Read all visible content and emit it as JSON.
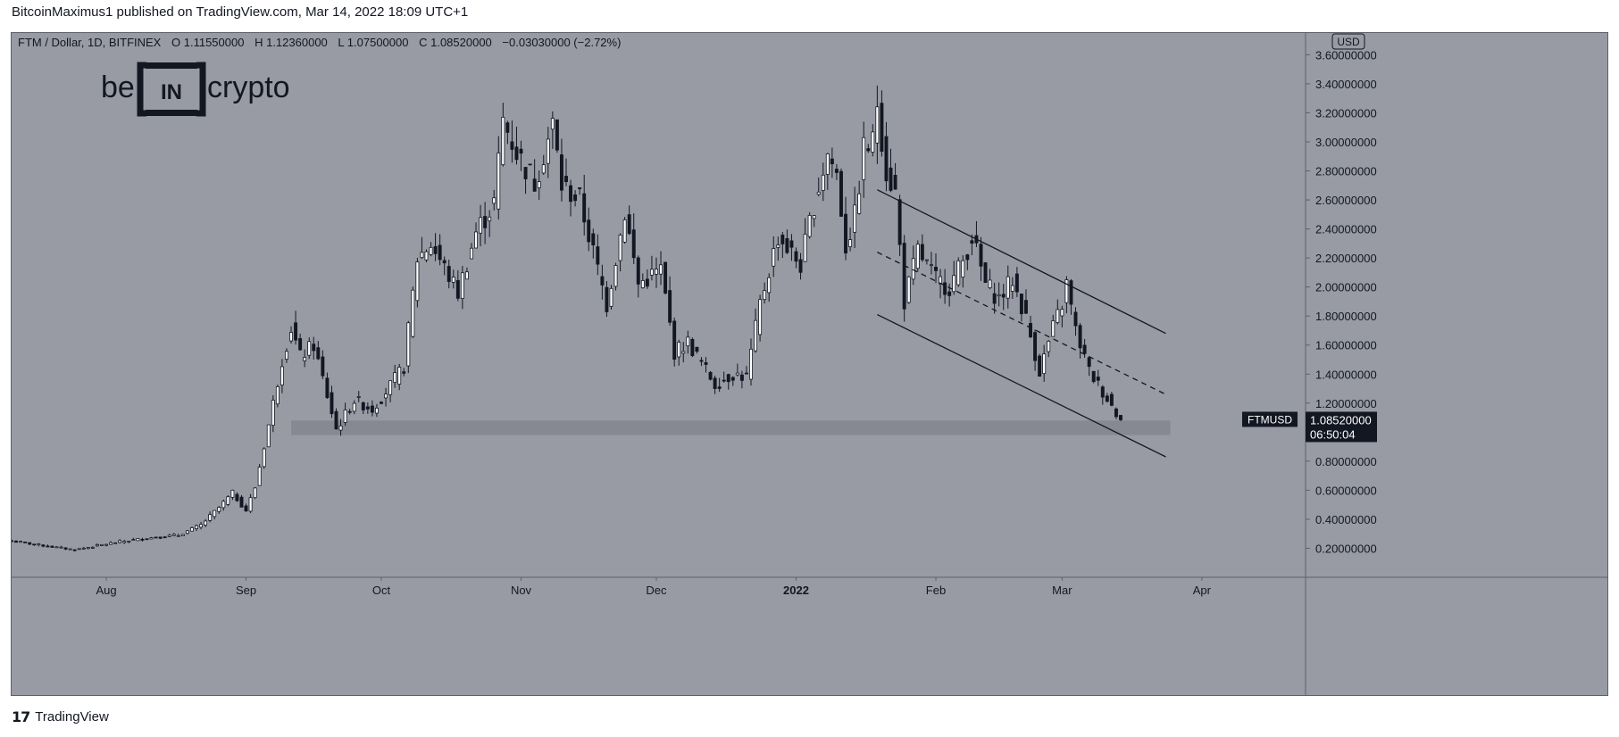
{
  "header": {
    "text": "BitcoinMaximus1 published on TradingView.com, Mar 14, 2022 18:09 UTC+1"
  },
  "legend": {
    "symbol": "FTM / Dollar, 1D, BITFINEX",
    "o_label": "O",
    "o": "1.11550000",
    "h_label": "H",
    "h": "1.12360000",
    "l_label": "L",
    "l": "1.07500000",
    "c_label": "C",
    "c": "1.08520000",
    "change": "−0.03030000 (−2.72%)"
  },
  "watermark": {
    "left": "be",
    "middle": "IN",
    "right": "crypto"
  },
  "currency_badge": "USD",
  "price_tag": {
    "symbol": "FTMUSD",
    "price": "1.08520000",
    "countdown": "06:50:04"
  },
  "footer": {
    "brand_icon": "tradingview-logo-icon",
    "brand": "TradingView"
  },
  "colors": {
    "background": "#989ba4",
    "candle_up": "#ffffff",
    "candle_down": "#131722",
    "support_zone": "#84868f",
    "lines": "#131722"
  },
  "chart_data": {
    "type": "candlestick",
    "title": "",
    "xlabel": "",
    "ylabel": "",
    "ylim": [
      0,
      3.75
    ],
    "y_ticks": [
      "0.20000000",
      "0.40000000",
      "0.60000000",
      "0.80000000",
      "1.00000000",
      "1.20000000",
      "1.40000000",
      "1.60000000",
      "1.80000000",
      "2.00000000",
      "2.20000000",
      "2.40000000",
      "2.60000000",
      "2.80000000",
      "3.00000000",
      "3.20000000",
      "3.40000000",
      "3.60000000"
    ],
    "x_ticks": [
      {
        "label": "Aug",
        "date": "2021-08-01"
      },
      {
        "label": "Sep",
        "date": "2021-09-01"
      },
      {
        "label": "Oct",
        "date": "2021-10-01"
      },
      {
        "label": "Nov",
        "date": "2021-11-01"
      },
      {
        "label": "Dec",
        "date": "2021-12-01"
      },
      {
        "label": "2022",
        "date": "2022-01-01",
        "bold": true
      },
      {
        "label": "Feb",
        "date": "2022-02-01"
      },
      {
        "label": "Mar",
        "date": "2022-03-01"
      },
      {
        "label": "Apr",
        "date": "2022-04-01"
      }
    ],
    "x_range": [
      "2021-07-11",
      "2022-04-24"
    ],
    "support_zone": {
      "from": 0.98,
      "to": 1.08,
      "start": "2021-09-11",
      "end": "2022-03-25"
    },
    "channel": {
      "upper": {
        "start": [
          "2022-01-19",
          2.67
        ],
        "end": [
          "2022-03-24",
          1.68
        ]
      },
      "middle": {
        "start": [
          "2022-01-19",
          2.24
        ],
        "end": [
          "2022-03-24",
          1.26
        ]
      },
      "lower": {
        "start": [
          "2022-01-19",
          1.81
        ],
        "end": [
          "2022-03-24",
          0.83
        ]
      }
    },
    "last_price": 1.0852,
    "anchors": [
      [
        "2021-07-11",
        0.25
      ],
      [
        "2021-07-20",
        0.21
      ],
      [
        "2021-07-25",
        0.19
      ],
      [
        "2021-08-03",
        0.24
      ],
      [
        "2021-08-10",
        0.27
      ],
      [
        "2021-08-17",
        0.29
      ],
      [
        "2021-08-22",
        0.36
      ],
      [
        "2021-08-26",
        0.48
      ],
      [
        "2021-08-29",
        0.58
      ],
      [
        "2021-09-01",
        0.46
      ],
      [
        "2021-09-03",
        0.62
      ],
      [
        "2021-09-06",
        1.05
      ],
      [
        "2021-09-09",
        1.5
      ],
      [
        "2021-09-11",
        1.72
      ],
      [
        "2021-09-13",
        1.52
      ],
      [
        "2021-09-16",
        1.6
      ],
      [
        "2021-09-21",
        1.02
      ],
      [
        "2021-09-25",
        1.22
      ],
      [
        "2021-09-29",
        1.16
      ],
      [
        "2021-10-03",
        1.32
      ],
      [
        "2021-10-06",
        1.45
      ],
      [
        "2021-10-09",
        2.2
      ],
      [
        "2021-10-12",
        2.3
      ],
      [
        "2021-10-18",
        1.96
      ],
      [
        "2021-10-22",
        2.38
      ],
      [
        "2021-10-26",
        2.58
      ],
      [
        "2021-10-28",
        3.15
      ],
      [
        "2021-10-31",
        2.93
      ],
      [
        "2021-11-04",
        2.72
      ],
      [
        "2021-11-08",
        3.12
      ],
      [
        "2021-11-10",
        2.7
      ],
      [
        "2021-11-14",
        2.6
      ],
      [
        "2021-11-20",
        1.88
      ],
      [
        "2021-11-24",
        2.52
      ],
      [
        "2021-11-27",
        2.02
      ],
      [
        "2021-12-02",
        2.12
      ],
      [
        "2021-12-05",
        1.55
      ],
      [
        "2021-12-08",
        1.62
      ],
      [
        "2021-12-14",
        1.33
      ],
      [
        "2021-12-18",
        1.4
      ],
      [
        "2021-12-21",
        1.38
      ],
      [
        "2021-12-24",
        1.88
      ],
      [
        "2021-12-28",
        2.35
      ],
      [
        "2022-01-02",
        2.15
      ],
      [
        "2022-01-05",
        2.58
      ],
      [
        "2022-01-08",
        2.92
      ],
      [
        "2022-01-10",
        2.78
      ],
      [
        "2022-01-12",
        2.28
      ],
      [
        "2022-01-14",
        2.48
      ],
      [
        "2022-01-16",
        2.95
      ],
      [
        "2022-01-18",
        2.99
      ],
      [
        "2022-01-19",
        3.28
      ],
      [
        "2022-01-21",
        2.8
      ],
      [
        "2022-01-23",
        2.65
      ],
      [
        "2022-01-25",
        1.9
      ],
      [
        "2022-01-28",
        2.25
      ],
      [
        "2022-02-01",
        2.05
      ],
      [
        "2022-02-04",
        2.0
      ],
      [
        "2022-02-07",
        2.18
      ],
      [
        "2022-02-09",
        2.35
      ],
      [
        "2022-02-12",
        2.02
      ],
      [
        "2022-02-15",
        1.92
      ],
      [
        "2022-02-18",
        2.05
      ],
      [
        "2022-02-21",
        1.78
      ],
      [
        "2022-02-24",
        1.42
      ],
      [
        "2022-02-27",
        1.72
      ],
      [
        "2022-03-01",
        1.88
      ],
      [
        "2022-03-02",
        2.02
      ],
      [
        "2022-03-04",
        1.7
      ],
      [
        "2022-03-07",
        1.42
      ],
      [
        "2022-03-10",
        1.28
      ],
      [
        "2022-03-14",
        1.0852
      ]
    ]
  }
}
